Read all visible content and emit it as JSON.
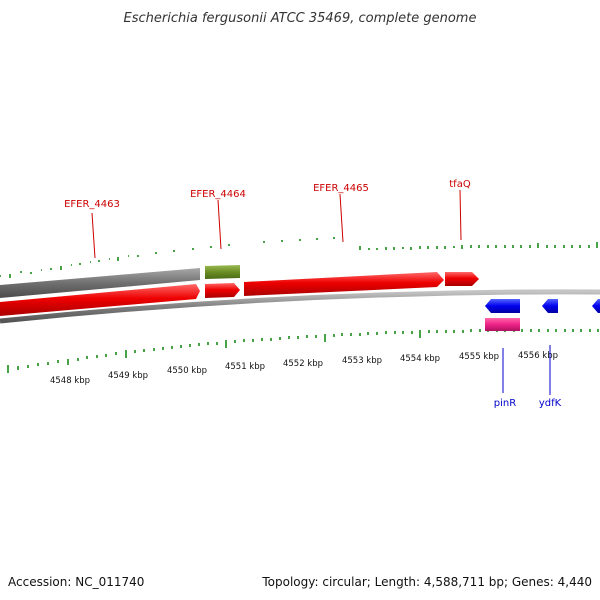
{
  "title": "Escherichia fergusonii ATCC 35469, complete genome",
  "footer": {
    "accession": "Accession: NC_011740",
    "summary": "Topology: circular; Length: 4,588,711 bp; Genes: 4,440"
  },
  "kbp_labels": [
    "4548 kbp",
    "4549 kbp",
    "4550 kbp",
    "4551 kbp",
    "4552 kbp",
    "4553 kbp",
    "4554 kbp",
    "4555 kbp",
    "4556 kbp"
  ],
  "top_gene_labels": [
    "EFER_4463",
    "EFER_4464",
    "EFER_4465",
    "tfaQ"
  ],
  "bottom_gene_labels": [
    "pinR",
    "ydfK"
  ],
  "colors": {
    "forward_gene": "#ee0000",
    "rna_gene": "#6b8e23",
    "pseudo_region": "#707070",
    "reverse_gene": "#0000ee",
    "pink_feature": "#ee2288",
    "tick": "#1a8a1a",
    "backbone": "#888888"
  }
}
